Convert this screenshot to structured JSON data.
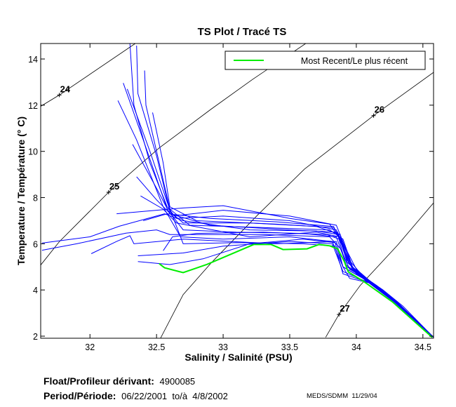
{
  "chart_data": {
    "type": "line",
    "title": "TS Plot / Tracé TS",
    "xlabel": "Salinity / Salinité (PSU)",
    "ylabel": "Temperature / Température (° C)",
    "xlim": [
      31.63,
      34.58
    ],
    "ylim": [
      1.91,
      14.67
    ],
    "xticks": [
      32,
      32.5,
      33,
      33.5,
      34,
      34.5
    ],
    "xtick_labels": [
      "32",
      "32.5",
      "33",
      "33.5",
      "34",
      "34.5"
    ],
    "yticks": [
      2,
      4,
      6,
      8,
      10,
      12,
      14
    ],
    "ytick_labels": [
      "2",
      "4",
      "6",
      "8",
      "10",
      "12",
      "14"
    ],
    "grid": false,
    "legend": {
      "placement": "top-right",
      "entries": [
        {
          "name": "Most Recent/Le plus récent",
          "color": "#00ee00"
        }
      ]
    },
    "colors": {
      "profiles": "#0000ff",
      "most_recent": "#00ee00",
      "contours": "#000000"
    },
    "density_contours": [
      {
        "label": "24",
        "label_at": [
          31.77,
          12.44
        ],
        "points": [
          [
            31.63,
            11.95
          ],
          [
            31.77,
            12.44
          ],
          [
            32.34,
            14.67
          ]
        ]
      },
      {
        "label": "25",
        "label_at": [
          32.14,
          8.23
        ],
        "points": [
          [
            31.63,
            5.08
          ],
          [
            31.77,
            6.09
          ],
          [
            32.14,
            8.23
          ],
          [
            32.52,
            10.15
          ],
          [
            32.91,
            11.83
          ],
          [
            33.22,
            13.11
          ],
          [
            33.62,
            14.67
          ]
        ]
      },
      {
        "label": "26",
        "label_at": [
          34.13,
          11.55
        ],
        "points": [
          [
            32.53,
            1.91
          ],
          [
            32.7,
            3.8
          ],
          [
            32.91,
            5.17
          ],
          [
            33.26,
            7.25
          ],
          [
            33.61,
            9.23
          ],
          [
            34.13,
            11.55
          ],
          [
            34.58,
            13.42
          ]
        ]
      },
      {
        "label": "27",
        "label_at": [
          33.87,
          2.94
        ],
        "points": [
          [
            33.77,
            1.95
          ],
          [
            33.87,
            2.94
          ],
          [
            34.03,
            4.2
          ],
          [
            34.31,
            5.94
          ],
          [
            34.58,
            7.77
          ]
        ]
      }
    ],
    "profiles": [
      [
        [
          32.3,
          14.67
        ],
        [
          32.33,
          12.0
        ],
        [
          32.45,
          9.5
        ],
        [
          32.58,
          7.6
        ],
        [
          32.65,
          7.1
        ],
        [
          33.0,
          7.2
        ],
        [
          33.5,
          7.0
        ],
        [
          33.85,
          6.6
        ],
        [
          33.92,
          5.6
        ],
        [
          33.98,
          4.9
        ],
        [
          34.12,
          4.3
        ],
        [
          34.3,
          3.5
        ],
        [
          34.58,
          1.95
        ]
      ],
      [
        [
          32.35,
          14.58
        ],
        [
          32.36,
          12.5
        ],
        [
          32.5,
          9.8
        ],
        [
          32.6,
          7.4
        ],
        [
          32.7,
          6.9
        ],
        [
          33.2,
          6.9
        ],
        [
          33.7,
          6.75
        ],
        [
          33.88,
          6.4
        ],
        [
          33.93,
          5.3
        ],
        [
          34.0,
          4.8
        ],
        [
          34.15,
          4.2
        ],
        [
          34.32,
          3.4
        ],
        [
          34.58,
          1.95
        ]
      ],
      [
        [
          32.41,
          13.5
        ],
        [
          32.42,
          12.0
        ],
        [
          32.5,
          10.0
        ],
        [
          32.6,
          7.5
        ],
        [
          32.75,
          6.8
        ],
        [
          33.3,
          6.7
        ],
        [
          33.8,
          6.6
        ],
        [
          33.9,
          6.2
        ],
        [
          33.96,
          5.2
        ],
        [
          34.05,
          4.6
        ],
        [
          34.2,
          4.0
        ],
        [
          34.35,
          3.3
        ],
        [
          34.58,
          1.95
        ]
      ],
      [
        [
          32.25,
          12.96
        ],
        [
          32.4,
          10.5
        ],
        [
          32.58,
          7.5
        ],
        [
          32.7,
          6.6
        ],
        [
          33.1,
          6.5
        ],
        [
          33.6,
          6.45
        ],
        [
          33.85,
          6.3
        ],
        [
          33.93,
          5.0
        ],
        [
          34.1,
          4.4
        ],
        [
          34.3,
          3.5
        ],
        [
          34.58,
          1.95
        ]
      ],
      [
        [
          32.21,
          12.2
        ],
        [
          32.35,
          10.5
        ],
        [
          32.55,
          7.6
        ],
        [
          32.68,
          6.3
        ],
        [
          33.0,
          6.2
        ],
        [
          33.5,
          6.3
        ],
        [
          33.82,
          6.1
        ],
        [
          33.9,
          5.0
        ],
        [
          34.05,
          4.5
        ],
        [
          34.28,
          3.5
        ],
        [
          34.58,
          1.95
        ]
      ],
      [
        [
          32.47,
          11.68
        ],
        [
          32.55,
          9.5
        ],
        [
          32.6,
          7.6
        ],
        [
          32.8,
          7.0
        ],
        [
          33.4,
          6.85
        ],
        [
          33.83,
          6.7
        ],
        [
          33.9,
          6.0
        ],
        [
          33.97,
          5.0
        ],
        [
          34.1,
          4.4
        ],
        [
          34.3,
          3.5
        ],
        [
          34.58,
          1.95
        ]
      ],
      [
        [
          32.32,
          10.3
        ],
        [
          32.5,
          8.4
        ],
        [
          32.6,
          7.3
        ],
        [
          32.9,
          6.8
        ],
        [
          33.5,
          6.6
        ],
        [
          33.86,
          6.5
        ],
        [
          33.92,
          5.4
        ],
        [
          34.0,
          4.7
        ],
        [
          34.15,
          4.2
        ],
        [
          34.32,
          3.4
        ],
        [
          34.58,
          1.95
        ]
      ],
      [
        [
          32.35,
          8.9
        ],
        [
          32.5,
          7.9
        ],
        [
          32.62,
          7.2
        ],
        [
          33.0,
          7.45
        ],
        [
          33.5,
          7.2
        ],
        [
          33.85,
          6.8
        ],
        [
          33.92,
          5.8
        ],
        [
          34.0,
          4.9
        ],
        [
          34.12,
          4.3
        ],
        [
          34.3,
          3.5
        ],
        [
          34.58,
          1.95
        ]
      ],
      [
        [
          32.38,
          8.07
        ],
        [
          32.55,
          7.5
        ],
        [
          32.65,
          6.9
        ],
        [
          33.2,
          6.3
        ],
        [
          33.7,
          6.5
        ],
        [
          33.88,
          6.3
        ],
        [
          33.94,
          5.2
        ],
        [
          34.05,
          4.5
        ],
        [
          34.25,
          3.7
        ],
        [
          34.58,
          1.95
        ]
      ],
      [
        [
          31.64,
          6.03
        ],
        [
          32.0,
          6.3
        ],
        [
          32.22,
          6.76
        ],
        [
          32.56,
          7.3
        ],
        [
          32.7,
          7.0
        ],
        [
          33.2,
          6.6
        ],
        [
          33.7,
          6.55
        ],
        [
          33.87,
          6.4
        ],
        [
          33.93,
          5.2
        ],
        [
          34.05,
          4.6
        ],
        [
          34.3,
          3.5
        ],
        [
          34.58,
          1.95
        ]
      ],
      [
        [
          31.64,
          5.72
        ],
        [
          31.9,
          6.0
        ],
        [
          32.27,
          6.46
        ],
        [
          32.5,
          6.6
        ],
        [
          32.6,
          6.4
        ],
        [
          33.3,
          6.4
        ],
        [
          33.8,
          6.3
        ],
        [
          33.88,
          5.8
        ],
        [
          33.95,
          4.9
        ],
        [
          34.12,
          4.3
        ],
        [
          34.3,
          3.5
        ],
        [
          34.58,
          1.95
        ]
      ],
      [
        [
          32.01,
          5.57
        ],
        [
          32.2,
          6.1
        ],
        [
          32.3,
          6.35
        ],
        [
          32.33,
          6.0
        ],
        [
          32.7,
          6.2
        ],
        [
          33.4,
          6.0
        ],
        [
          33.85,
          6.1
        ],
        [
          33.9,
          5.0
        ],
        [
          34.08,
          4.4
        ],
        [
          34.3,
          3.45
        ],
        [
          34.58,
          1.95
        ]
      ],
      [
        [
          32.36,
          5.48
        ],
        [
          32.7,
          5.6
        ],
        [
          33.0,
          5.9
        ],
        [
          33.5,
          6.1
        ],
        [
          33.82,
          6.0
        ],
        [
          33.9,
          4.8
        ],
        [
          34.1,
          4.3
        ],
        [
          34.3,
          3.5
        ],
        [
          34.58,
          1.95
        ]
      ],
      [
        [
          32.36,
          5.23
        ],
        [
          32.6,
          5.1
        ],
        [
          32.85,
          5.35
        ],
        [
          33.2,
          6.0
        ],
        [
          33.6,
          6.2
        ],
        [
          33.84,
          6.05
        ],
        [
          33.9,
          5.0
        ],
        [
          33.95,
          4.5
        ],
        [
          34.1,
          4.3
        ],
        [
          34.3,
          3.45
        ],
        [
          34.58,
          1.95
        ]
      ],
      [
        [
          32.2,
          7.3
        ],
        [
          32.5,
          7.45
        ],
        [
          32.7,
          7.55
        ],
        [
          33.0,
          7.65
        ],
        [
          33.5,
          7.1
        ],
        [
          33.8,
          6.85
        ],
        [
          33.9,
          6.0
        ],
        [
          33.98,
          4.9
        ],
        [
          34.12,
          4.3
        ],
        [
          34.3,
          3.5
        ],
        [
          34.58,
          1.95
        ]
      ],
      [
        [
          32.28,
          12.7
        ],
        [
          32.45,
          10.0
        ],
        [
          32.58,
          7.8
        ],
        [
          32.7,
          6.0
        ],
        [
          33.1,
          6.05
        ],
        [
          33.6,
          6.0
        ],
        [
          33.84,
          5.9
        ],
        [
          33.9,
          4.7
        ],
        [
          34.1,
          4.3
        ],
        [
          34.3,
          3.45
        ],
        [
          34.58,
          1.95
        ]
      ],
      [
        [
          32.4,
          7.0
        ],
        [
          32.58,
          7.3
        ],
        [
          32.9,
          7.1
        ],
        [
          33.4,
          6.95
        ],
        [
          33.83,
          6.75
        ],
        [
          33.91,
          5.7
        ],
        [
          33.97,
          4.9
        ],
        [
          34.15,
          4.2
        ],
        [
          34.32,
          3.4
        ],
        [
          34.58,
          1.95
        ]
      ],
      [
        [
          32.55,
          5.7
        ],
        [
          32.62,
          6.3
        ],
        [
          32.8,
          6.45
        ],
        [
          33.3,
          6.5
        ],
        [
          33.78,
          6.4
        ],
        [
          33.87,
          6.2
        ],
        [
          33.92,
          5.1
        ],
        [
          34.06,
          4.5
        ],
        [
          34.3,
          3.5
        ],
        [
          34.58,
          1.95
        ]
      ]
    ],
    "most_recent": [
      [
        32.52,
        5.14
      ],
      [
        32.56,
        4.96
      ],
      [
        32.7,
        4.75
      ],
      [
        32.88,
        5.11
      ],
      [
        33.23,
        5.97
      ],
      [
        33.36,
        5.97
      ],
      [
        33.45,
        5.75
      ],
      [
        33.63,
        5.78
      ],
      [
        33.72,
        5.97
      ],
      [
        33.8,
        5.91
      ],
      [
        33.86,
        5.78
      ],
      [
        33.91,
        5.23
      ],
      [
        33.94,
        4.78
      ],
      [
        34.06,
        4.35
      ],
      [
        34.27,
        3.49
      ],
      [
        34.57,
        1.95
      ]
    ]
  },
  "footer": {
    "float_label": "Float/Profileur dérivant:",
    "float_id": "4900085",
    "period_label": "Period/Période:",
    "period_value": "06/22/2001  to/à  4/8/2002",
    "credit": "MEDS/SDMM  11/29/04"
  }
}
